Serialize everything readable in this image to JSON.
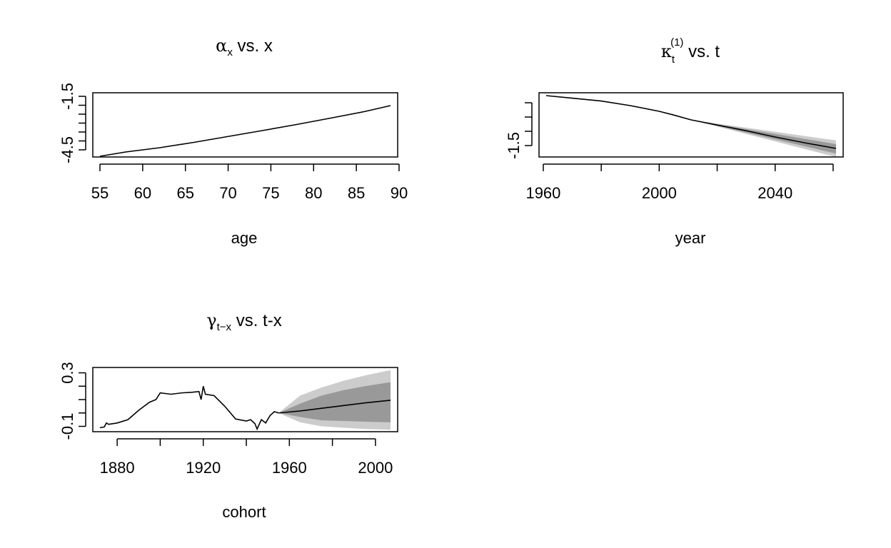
{
  "chart_data": [
    {
      "type": "line",
      "title_sym": "α",
      "title_sub": "x",
      "title_rest": " vs. x",
      "xlabel": "age",
      "ylabel": "",
      "xlim": [
        55,
        89
      ],
      "ylim": [
        -4.9,
        -1.3
      ],
      "xticks": [
        55,
        60,
        65,
        70,
        75,
        80,
        85,
        90
      ],
      "yticks": [
        -4.5,
        -4,
        -3.5,
        -3,
        -2.5,
        -2,
        -1.5
      ],
      "ytick_labels": [
        {
          "v": -4.5,
          "text": "-4.5"
        },
        {
          "v": -1.5,
          "text": "-1.5"
        }
      ],
      "series": [
        {
          "values": [
            [
              55,
              -4.86
            ],
            [
              58,
              -4.62
            ],
            [
              62,
              -4.38
            ],
            [
              66,
              -4.08
            ],
            [
              70,
              -3.75
            ],
            [
              74,
              -3.42
            ],
            [
              78,
              -3.08
            ],
            [
              82,
              -2.72
            ],
            [
              86,
              -2.35
            ],
            [
              89,
              -2.02
            ]
          ]
        }
      ]
    },
    {
      "type": "line",
      "title_sym": "κ",
      "title_sub": "t",
      "title_sup": "(1)",
      "title_rest": " vs. t",
      "xlabel": "year",
      "ylabel": "",
      "xlim": [
        1961,
        2061
      ],
      "ylim": [
        -1.9,
        0.35
      ],
      "xticks": [
        1960,
        1980,
        2000,
        2020,
        2040,
        2060
      ],
      "xtick_labels": [
        {
          "v": 1960,
          "text": "1960"
        },
        {
          "v": 2000,
          "text": "2000"
        },
        {
          "v": 2040,
          "text": "2040"
        }
      ],
      "yticks": [
        -1.5,
        -1.0,
        -0.5,
        0.0
      ],
      "ytick_labels": [
        {
          "v": -1.5,
          "text": "-1.5"
        }
      ],
      "series": [
        {
          "values": [
            [
              1961,
              0.25
            ],
            [
              1970,
              0.16
            ],
            [
              1980,
              0.06
            ],
            [
              1990,
              -0.1
            ],
            [
              2000,
              -0.3
            ],
            [
              2005,
              -0.43
            ],
            [
              2011,
              -0.6
            ]
          ]
        },
        {
          "values": [
            [
              2011,
              -0.6
            ],
            [
              2020,
              -0.78
            ],
            [
              2030,
              -0.98
            ],
            [
              2040,
              -1.2
            ],
            [
              2050,
              -1.4
            ],
            [
              2061,
              -1.6
            ]
          ]
        }
      ],
      "fan_outer": {
        "x": [
          2011,
          2061
        ],
        "low": [
          -0.6,
          -1.9
        ],
        "high": [
          -0.6,
          -1.32
        ]
      },
      "fan_inner": {
        "x": [
          2011,
          2061
        ],
        "low": [
          -0.6,
          -1.78
        ],
        "high": [
          -0.6,
          -1.45
        ]
      }
    },
    {
      "type": "line",
      "title_sym": "γ",
      "title_sub": "t−x",
      "title_rest": " vs. t-x",
      "xlabel": "cohort",
      "ylabel": "",
      "xlim": [
        1872,
        2007
      ],
      "ylim": [
        -0.14,
        0.34
      ],
      "xticks": [
        1880,
        1900,
        1920,
        1940,
        1960,
        1980,
        2000
      ],
      "xtick_labels": [
        {
          "v": 1880,
          "text": "1880"
        },
        {
          "v": 1920,
          "text": "1920"
        },
        {
          "v": 1960,
          "text": "1960"
        },
        {
          "v": 2000,
          "text": "2000"
        }
      ],
      "yticks": [
        -0.1,
        0.0,
        0.1,
        0.2,
        0.3
      ],
      "ytick_labels": [
        {
          "v": -0.1,
          "text": "-0.1"
        },
        {
          "v": 0.3,
          "text": "0.3"
        }
      ],
      "series": [
        {
          "values": [
            [
              1872,
              -0.11
            ],
            [
              1874,
              -0.105
            ],
            [
              1875,
              -0.075
            ],
            [
              1876,
              -0.085
            ],
            [
              1880,
              -0.075
            ],
            [
              1885,
              -0.05
            ],
            [
              1890,
              0.02
            ],
            [
              1895,
              0.08
            ],
            [
              1898,
              0.1
            ],
            [
              1900,
              0.15
            ],
            [
              1905,
              0.14
            ],
            [
              1910,
              0.15
            ],
            [
              1915,
              0.155
            ],
            [
              1918,
              0.16
            ],
            [
              1919,
              0.1
            ],
            [
              1920,
              0.2
            ],
            [
              1921,
              0.14
            ],
            [
              1925,
              0.13
            ],
            [
              1930,
              0.05
            ],
            [
              1935,
              -0.045
            ],
            [
              1940,
              -0.06
            ],
            [
              1942,
              -0.05
            ],
            [
              1944,
              -0.08
            ],
            [
              1945,
              -0.12
            ],
            [
              1947,
              -0.05
            ],
            [
              1949,
              -0.075
            ],
            [
              1951,
              -0.02
            ],
            [
              1953,
              0.01
            ],
            [
              1955,
              0.0
            ]
          ]
        },
        {
          "values": [
            [
              1955,
              0.0
            ],
            [
              1965,
              0.015
            ],
            [
              1975,
              0.035
            ],
            [
              1985,
              0.055
            ],
            [
              1995,
              0.075
            ],
            [
              2007,
              0.095
            ]
          ]
        }
      ],
      "fan_outer": {
        "x": [
          1955,
          1965,
          1975,
          1985,
          1995,
          2007
        ],
        "low": [
          0.0,
          -0.07,
          -0.1,
          -0.11,
          -0.12,
          -0.125
        ],
        "high": [
          0.0,
          0.13,
          0.19,
          0.24,
          0.28,
          0.32
        ]
      },
      "fan_inner": {
        "x": [
          1955,
          1965,
          1975,
          1985,
          1995,
          2007
        ],
        "low": [
          0.0,
          -0.03,
          -0.055,
          -0.06,
          -0.065,
          -0.07
        ],
        "high": [
          0.0,
          0.07,
          0.13,
          0.17,
          0.2,
          0.23
        ]
      }
    }
  ]
}
